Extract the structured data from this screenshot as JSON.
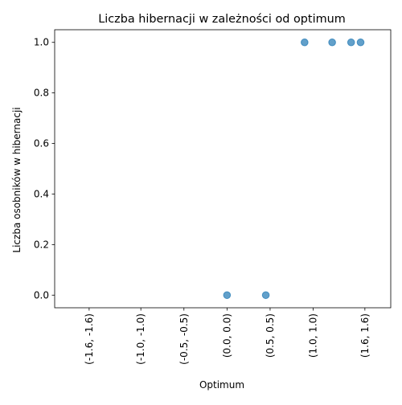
{
  "chart_data": {
    "type": "scatter",
    "title": "Liczba hibernacji w zależności od optimum",
    "xlabel": "Optimum",
    "ylabel": "Liczba osobników w hibernacji",
    "x_ticks": [
      {
        "value": -1.6,
        "label": "(-1.6, -1.6)"
      },
      {
        "value": -1.0,
        "label": "(-1.0, -1.0)"
      },
      {
        "value": -0.5,
        "label": "(-0.5, -0.5)"
      },
      {
        "value": 0.0,
        "label": "(0.0, 0.0)"
      },
      {
        "value": 0.5,
        "label": "(0.5, 0.5)"
      },
      {
        "value": 1.0,
        "label": "(1.0, 1.0)"
      },
      {
        "value": 1.6,
        "label": "(1.6, 1.6)"
      }
    ],
    "y_ticks": [
      {
        "value": 0.0,
        "label": "0.0"
      },
      {
        "value": 0.2,
        "label": "0.2"
      },
      {
        "value": 0.4,
        "label": "0.4"
      },
      {
        "value": 0.6,
        "label": "0.6"
      },
      {
        "value": 0.8,
        "label": "0.8"
      },
      {
        "value": 1.0,
        "label": "1.0"
      }
    ],
    "points": [
      {
        "x": 0.0,
        "y": 0
      },
      {
        "x": 0.45,
        "y": 0
      },
      {
        "x": 0.9,
        "y": 1
      },
      {
        "x": 1.22,
        "y": 1
      },
      {
        "x": 1.44,
        "y": 1
      },
      {
        "x": 1.55,
        "y": 1
      }
    ],
    "xlim": [
      -2.0,
      1.9
    ],
    "ylim": [
      -0.05,
      1.05
    ],
    "grid": false,
    "point_color": "#1f77b4",
    "point_alpha": 0.7
  }
}
